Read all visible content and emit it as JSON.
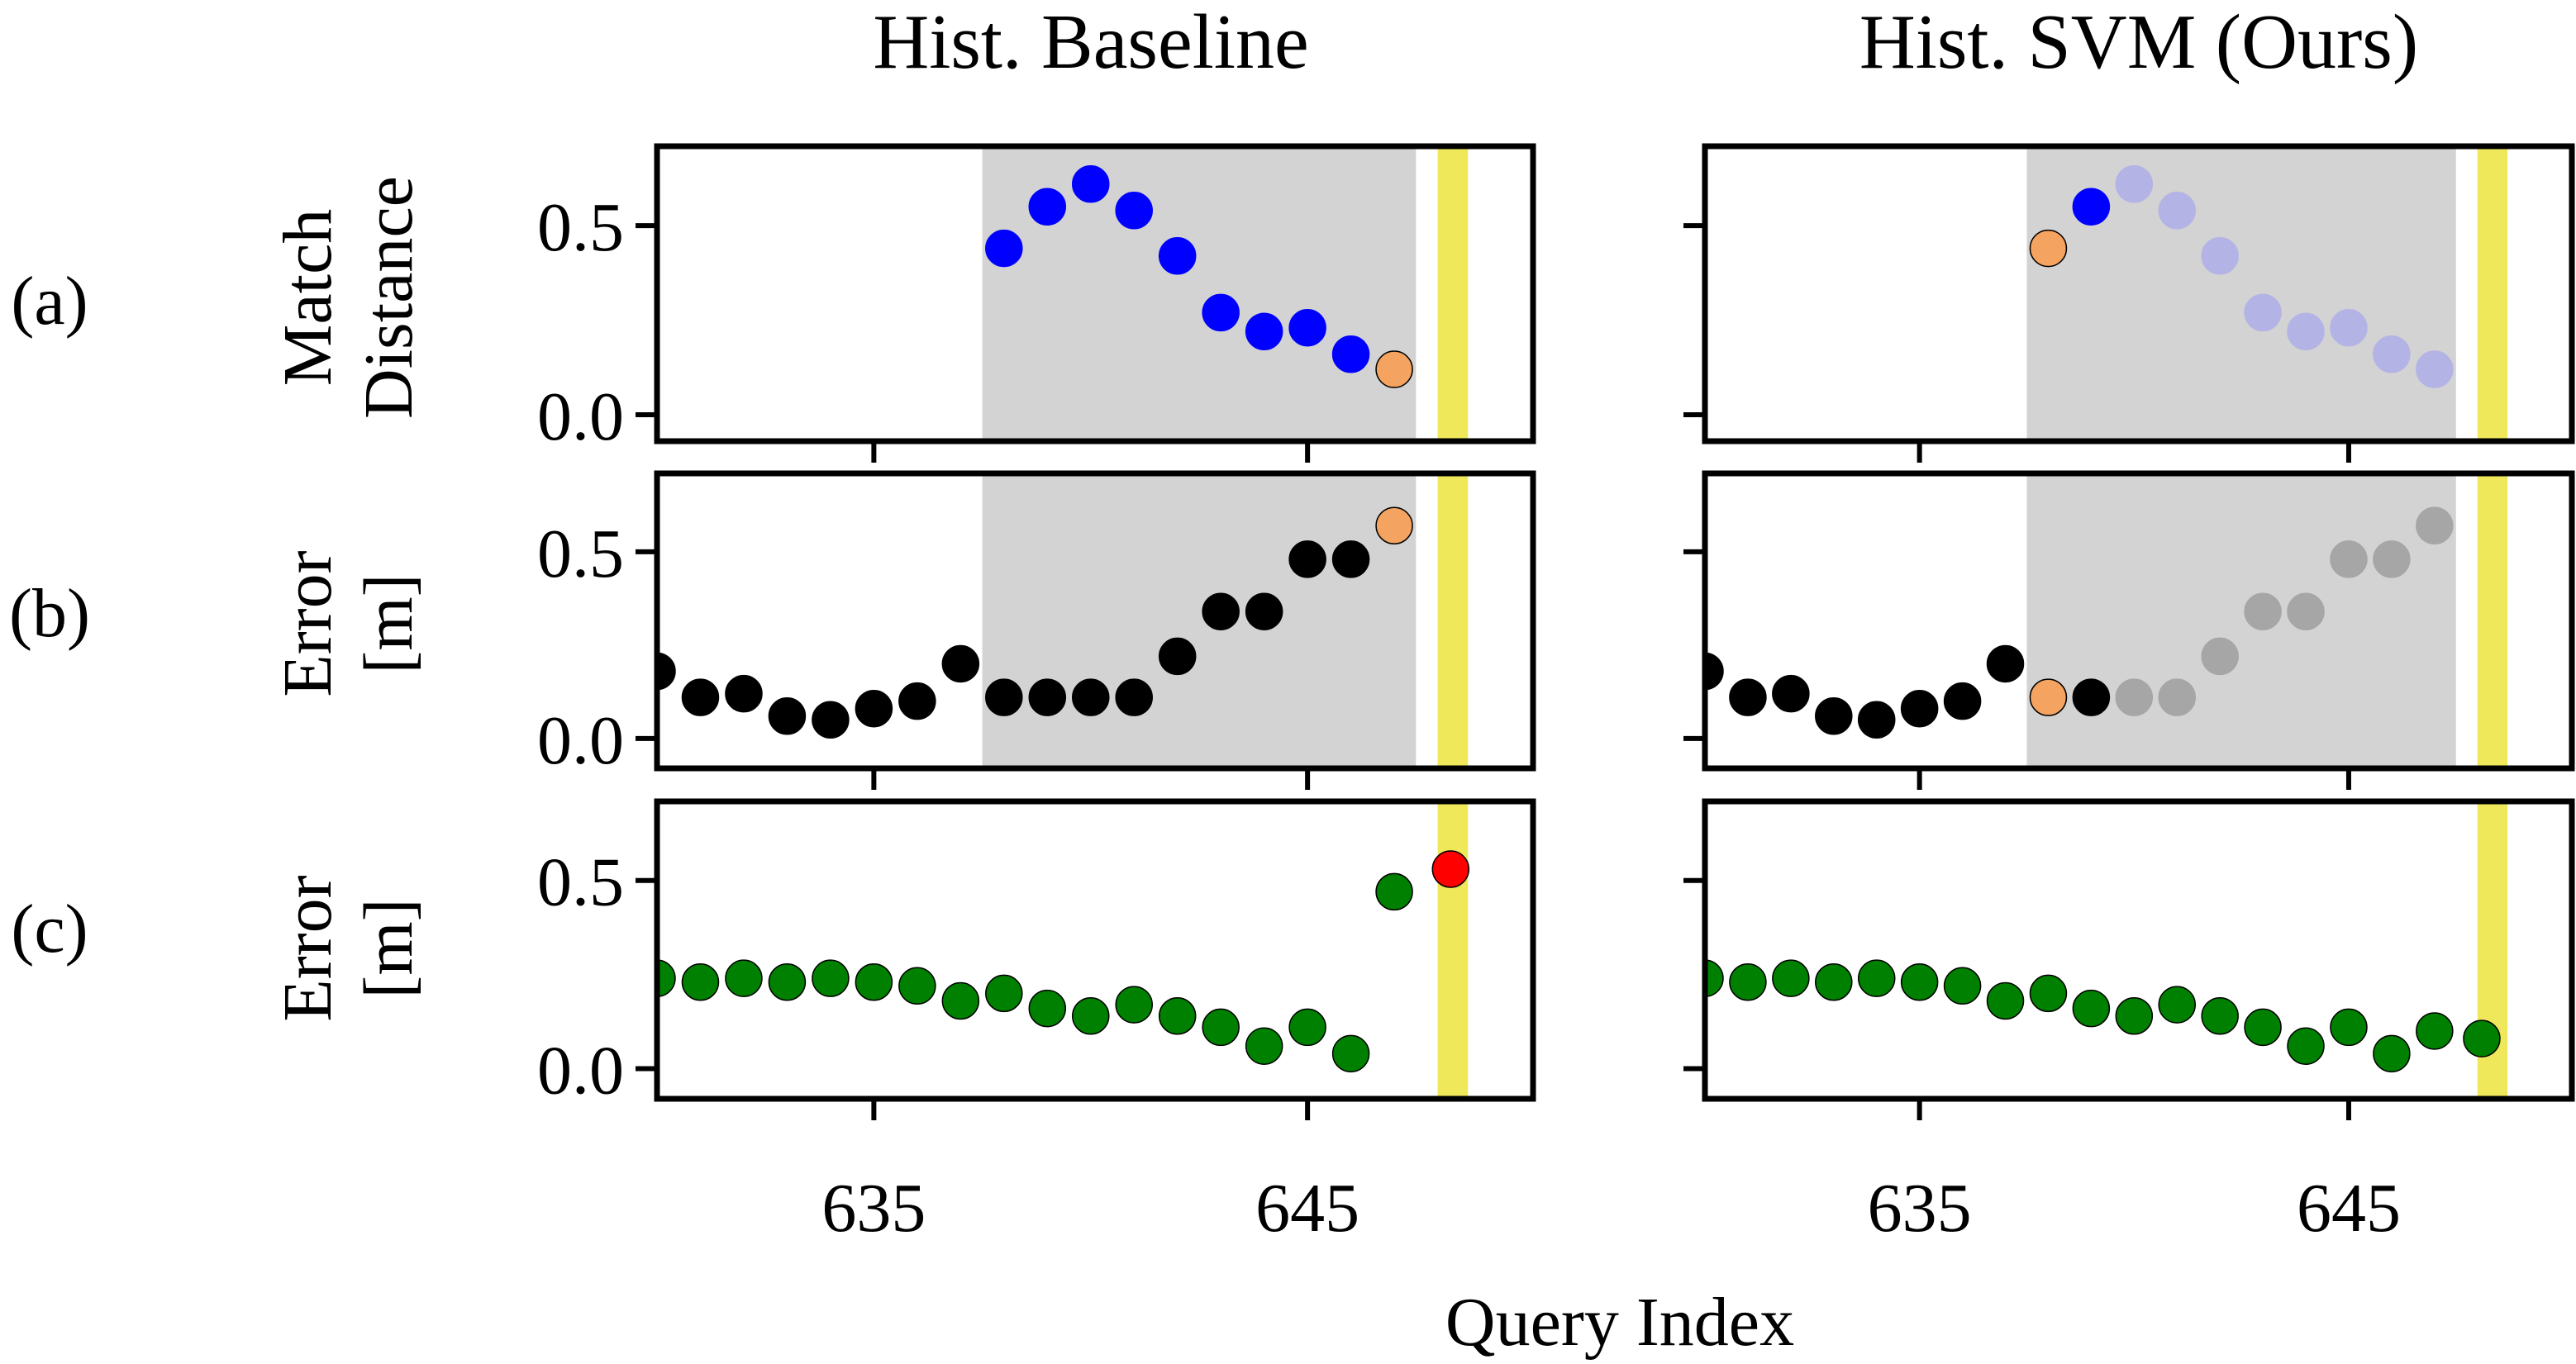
{
  "columns": [
    {
      "title": "Hist. Baseline"
    },
    {
      "title": "Hist. SVM (Ours)"
    }
  ],
  "rows": [
    {
      "tag": "(a)",
      "ylabel": [
        "Match",
        "Distance"
      ]
    },
    {
      "tag": "(b)",
      "ylabel": [
        "Error",
        "[m]"
      ]
    },
    {
      "tag": "(c)",
      "ylabel": [
        "Error",
        "[m]"
      ]
    }
  ],
  "xlabel": "Query Index",
  "xlim": [
    630,
    650.2
  ],
  "xticks": [
    635,
    645
  ],
  "xtick_labels": [
    "635",
    "645"
  ],
  "yticks": [
    0.0,
    0.5
  ],
  "ytick_labels": [
    "0.0",
    "0.5"
  ],
  "colors": {
    "shade": "#d3d3d3",
    "highlight": "#eee85a",
    "match": "#0000ff",
    "match_faded": "#b3b3e6",
    "error": "#000000",
    "error_faded": "#a6a6a6",
    "selected": "#f4a460",
    "odom": "#008000",
    "odom_fail": "#ff0000"
  },
  "chart_data": [
    {
      "type": "scatter",
      "panel": "(a) Hist. Baseline",
      "ylabel": "Match Distance",
      "ylim": [
        -0.07,
        0.71
      ],
      "shade": [
        637.5,
        647.5
      ],
      "highlight": [
        648,
        648.7
      ],
      "series": [
        {
          "style": "match",
          "x": [
            638,
            639,
            640,
            641,
            642,
            643,
            644,
            645,
            646
          ],
          "y": [
            0.44,
            0.55,
            0.61,
            0.54,
            0.42,
            0.27,
            0.22,
            0.23,
            0.16
          ]
        },
        {
          "style": "selected",
          "x": [
            647
          ],
          "y": [
            0.12
          ]
        }
      ]
    },
    {
      "type": "scatter",
      "panel": "(a) Hist. SVM (Ours)",
      "ylabel": "Match Distance",
      "ylim": [
        -0.07,
        0.71
      ],
      "shade": [
        637.5,
        647.5
      ],
      "highlight": [
        648,
        648.7
      ],
      "series": [
        {
          "style": "selected",
          "x": [
            638
          ],
          "y": [
            0.44
          ]
        },
        {
          "style": "match",
          "x": [
            639
          ],
          "y": [
            0.55
          ]
        },
        {
          "style": "match_faded",
          "x": [
            640,
            641,
            642,
            643,
            644,
            645,
            646,
            647
          ],
          "y": [
            0.61,
            0.54,
            0.42,
            0.27,
            0.22,
            0.23,
            0.16,
            0.12
          ]
        }
      ]
    },
    {
      "type": "scatter",
      "panel": "(b) Hist. Baseline",
      "ylabel": "Error [m]",
      "ylim": [
        -0.08,
        0.71
      ],
      "shade": [
        637.5,
        647.5
      ],
      "highlight": [
        648,
        648.7
      ],
      "series": [
        {
          "style": "error",
          "x": [
            630,
            631,
            632,
            633,
            634,
            635,
            636,
            637,
            638,
            639,
            640,
            641,
            642,
            643,
            644,
            645,
            646
          ],
          "y": [
            0.18,
            0.11,
            0.12,
            0.06,
            0.05,
            0.08,
            0.1,
            0.2,
            0.11,
            0.11,
            0.11,
            0.11,
            0.22,
            0.34,
            0.34,
            0.48,
            0.48
          ]
        },
        {
          "style": "selected",
          "x": [
            647
          ],
          "y": [
            0.57
          ]
        }
      ]
    },
    {
      "type": "scatter",
      "panel": "(b) Hist. SVM (Ours)",
      "ylabel": "Error [m]",
      "ylim": [
        -0.08,
        0.71
      ],
      "shade": [
        637.5,
        647.5
      ],
      "highlight": [
        648,
        648.7
      ],
      "series": [
        {
          "style": "error",
          "x": [
            630,
            631,
            632,
            633,
            634,
            635,
            636,
            637,
            639
          ],
          "y": [
            0.18,
            0.11,
            0.12,
            0.06,
            0.05,
            0.08,
            0.1,
            0.2,
            0.11
          ]
        },
        {
          "style": "selected",
          "x": [
            638
          ],
          "y": [
            0.11
          ]
        },
        {
          "style": "error_faded",
          "x": [
            640,
            641,
            642,
            643,
            644,
            645,
            646,
            647
          ],
          "y": [
            0.11,
            0.11,
            0.22,
            0.34,
            0.34,
            0.48,
            0.48,
            0.57
          ]
        }
      ]
    },
    {
      "type": "scatter",
      "panel": "(c) Hist. Baseline",
      "ylabel": "Error [m]",
      "ylim": [
        -0.08,
        0.71
      ],
      "highlight": [
        648,
        648.7
      ],
      "series": [
        {
          "style": "odom",
          "x": [
            630,
            631,
            632,
            633,
            634,
            635,
            636,
            637,
            638,
            639,
            640,
            641,
            642,
            643,
            644,
            645,
            646,
            647
          ],
          "y": [
            0.24,
            0.23,
            0.24,
            0.23,
            0.24,
            0.23,
            0.22,
            0.18,
            0.2,
            0.16,
            0.14,
            0.17,
            0.14,
            0.11,
            0.06,
            0.11,
            0.04,
            0.47
          ]
        },
        {
          "style": "odom_fail",
          "x": [
            648.3
          ],
          "y": [
            0.53
          ]
        }
      ]
    },
    {
      "type": "scatter",
      "panel": "(c) Hist. SVM (Ours)",
      "ylabel": "Error [m]",
      "ylim": [
        -0.08,
        0.71
      ],
      "highlight": [
        648,
        648.7
      ],
      "series": [
        {
          "style": "odom",
          "x": [
            630,
            631,
            632,
            633,
            634,
            635,
            636,
            637,
            638,
            639,
            640,
            641,
            642,
            643,
            644,
            645,
            646,
            647,
            648.1
          ],
          "y": [
            0.24,
            0.23,
            0.24,
            0.23,
            0.24,
            0.23,
            0.22,
            0.18,
            0.2,
            0.16,
            0.14,
            0.17,
            0.14,
            0.11,
            0.06,
            0.11,
            0.04,
            0.1,
            0.08
          ]
        }
      ]
    }
  ]
}
